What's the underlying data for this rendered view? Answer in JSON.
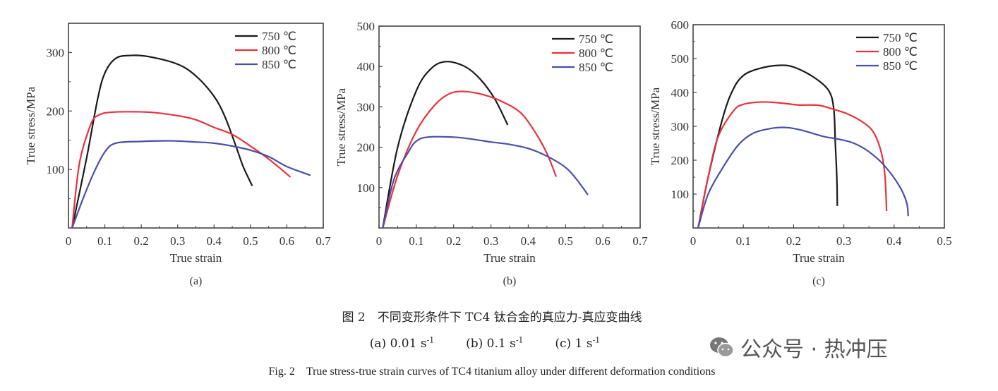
{
  "chart_data": [
    {
      "type": "line",
      "panel_label": "(a)",
      "xlabel": "True strain",
      "ylabel": "True stress/MPa",
      "xlim": [
        0,
        0.7
      ],
      "ylim": [
        0,
        350
      ],
      "xticks": [
        "0",
        "0.1",
        "0.2",
        "0.3",
        "0.4",
        "0.5",
        "0.6",
        "0.7"
      ],
      "yticks": [
        "100",
        "200",
        "300"
      ],
      "grid": false,
      "legend_position": "top-right",
      "series": [
        {
          "name": "750 ℃",
          "color": "#1a1a1a",
          "x": [
            0.01,
            0.05,
            0.08,
            0.1,
            0.13,
            0.17,
            0.22,
            0.3,
            0.35,
            0.4,
            0.43,
            0.46,
            0.48,
            0.505
          ],
          "y": [
            0,
            120,
            220,
            265,
            290,
            295,
            293,
            280,
            260,
            225,
            190,
            140,
            105,
            72
          ]
        },
        {
          "name": "800 ℃",
          "color": "#e8323c",
          "x": [
            0.01,
            0.03,
            0.06,
            0.08,
            0.12,
            0.22,
            0.3,
            0.35,
            0.4,
            0.45,
            0.5,
            0.55,
            0.61
          ],
          "y": [
            0,
            110,
            175,
            192,
            198,
            198,
            192,
            185,
            172,
            160,
            140,
            118,
            87
          ]
        },
        {
          "name": "850 ℃",
          "color": "#4a4fa8",
          "x": [
            0.01,
            0.04,
            0.07,
            0.1,
            0.13,
            0.2,
            0.28,
            0.35,
            0.4,
            0.45,
            0.5,
            0.55,
            0.6,
            0.665
          ],
          "y": [
            0,
            50,
            95,
            130,
            145,
            148,
            149,
            147,
            145,
            140,
            133,
            122,
            105,
            90
          ]
        }
      ]
    },
    {
      "type": "line",
      "panel_label": "(b)",
      "xlabel": "True strain",
      "ylabel": "True stress/MPa",
      "xlim": [
        0,
        0.7
      ],
      "ylim": [
        0,
        500
      ],
      "xticks": [
        "0",
        "0.1",
        "0.2",
        "0.3",
        "0.4",
        "0.5",
        "0.6",
        "0.7"
      ],
      "yticks": [
        "100",
        "200",
        "300",
        "400",
        "500"
      ],
      "grid": false,
      "legend_position": "top-right",
      "series": [
        {
          "name": "750 ℃",
          "color": "#1a1a1a",
          "x": [
            0.01,
            0.05,
            0.1,
            0.14,
            0.18,
            0.23,
            0.27,
            0.31,
            0.345
          ],
          "y": [
            0,
            200,
            340,
            395,
            412,
            400,
            370,
            320,
            255
          ]
        },
        {
          "name": "800 ℃",
          "color": "#e8323c",
          "x": [
            0.01,
            0.05,
            0.1,
            0.15,
            0.19,
            0.23,
            0.28,
            0.33,
            0.38,
            0.42,
            0.45,
            0.475
          ],
          "y": [
            0,
            130,
            240,
            305,
            333,
            338,
            330,
            313,
            285,
            235,
            185,
            127
          ]
        },
        {
          "name": "850 ℃",
          "color": "#4a4fa8",
          "x": [
            0.01,
            0.04,
            0.08,
            0.1,
            0.13,
            0.2,
            0.25,
            0.3,
            0.35,
            0.4,
            0.45,
            0.5,
            0.53,
            0.56
          ],
          "y": [
            0,
            120,
            190,
            215,
            225,
            225,
            220,
            213,
            207,
            197,
            178,
            150,
            120,
            82
          ]
        }
      ]
    },
    {
      "type": "line",
      "panel_label": "(c)",
      "xlabel": "True strain",
      "ylabel": "True stress/MPa",
      "xlim": [
        0,
        0.5
      ],
      "ylim": [
        0,
        600
      ],
      "xticks": [
        "0",
        "0.1",
        "0.2",
        "0.3",
        "0.4",
        "0.5"
      ],
      "yticks": [
        "100",
        "200",
        "300",
        "400",
        "500",
        "600"
      ],
      "grid": false,
      "legend_position": "top-right",
      "series": [
        {
          "name": "750 ℃",
          "color": "#1a1a1a",
          "x": [
            0.01,
            0.03,
            0.06,
            0.08,
            0.1,
            0.13,
            0.17,
            0.2,
            0.24,
            0.27,
            0.28,
            0.283,
            0.286,
            0.287
          ],
          "y": [
            0,
            150,
            330,
            410,
            450,
            470,
            480,
            475,
            445,
            405,
            350,
            250,
            150,
            65
          ]
        },
        {
          "name": "800 ℃",
          "color": "#e8323c",
          "x": [
            0.01,
            0.03,
            0.05,
            0.08,
            0.1,
            0.14,
            0.18,
            0.21,
            0.25,
            0.28,
            0.31,
            0.34,
            0.36,
            0.375,
            0.382,
            0.385
          ],
          "y": [
            0,
            150,
            270,
            345,
            365,
            372,
            368,
            363,
            362,
            350,
            335,
            310,
            280,
            220,
            150,
            50
          ]
        },
        {
          "name": "850 ℃",
          "color": "#4a4fa8",
          "x": [
            0.01,
            0.03,
            0.06,
            0.09,
            0.12,
            0.16,
            0.19,
            0.22,
            0.26,
            0.29,
            0.32,
            0.35,
            0.38,
            0.41,
            0.425,
            0.428
          ],
          "y": [
            0,
            100,
            180,
            245,
            280,
            295,
            296,
            287,
            270,
            262,
            250,
            225,
            185,
            125,
            75,
            35
          ]
        }
      ]
    }
  ],
  "captions": {
    "cn": "图 2　不同变形条件下 TC4 钛合金的真应力-真应变曲线",
    "rate_a": "(a) 0.01 s",
    "rate_b": "(b) 0.1 s",
    "rate_c": "(c) 1 s",
    "exponent": "-1",
    "en": "Fig. 2　True stress-true strain curves of TC4 titanium alloy under different deformation conditions"
  },
  "watermark": {
    "icon": "wechat-icon",
    "text": "公众号 · 热冲压"
  }
}
